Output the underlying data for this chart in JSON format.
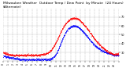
{
  "title": "Milwaukee Weather  Outdoor Temp / Dew Point  by Minute  (24 Hours) (Alternate)",
  "title_fontsize": 3.2,
  "bg_color": "#ffffff",
  "plot_bg_color": "#ffffff",
  "grid_color": "#aaaaaa",
  "text_color": "#000000",
  "temp_color": "#ff0000",
  "dew_color": "#0000ff",
  "ylim": [
    20,
    80
  ],
  "xlim": [
    0,
    1440
  ],
  "ytick_vals": [
    30,
    40,
    50,
    60,
    70
  ],
  "xtick_hours": [
    0,
    1,
    2,
    3,
    4,
    5,
    6,
    7,
    8,
    9,
    10,
    11,
    12,
    13,
    14,
    15,
    16,
    17,
    18,
    19,
    20,
    21,
    22,
    23,
    24
  ],
  "temp_data_pts": [
    [
      0,
      30
    ],
    [
      30,
      29
    ],
    [
      60,
      28
    ],
    [
      90,
      27
    ],
    [
      120,
      27
    ],
    [
      150,
      27
    ],
    [
      180,
      27
    ],
    [
      210,
      27
    ],
    [
      240,
      27
    ],
    [
      270,
      27
    ],
    [
      300,
      27
    ],
    [
      330,
      27
    ],
    [
      360,
      27
    ],
    [
      390,
      27
    ],
    [
      420,
      27
    ],
    [
      450,
      27
    ],
    [
      480,
      28
    ],
    [
      510,
      28
    ],
    [
      540,
      29
    ],
    [
      570,
      30
    ],
    [
      600,
      33
    ],
    [
      630,
      37
    ],
    [
      660,
      42
    ],
    [
      690,
      48
    ],
    [
      720,
      54
    ],
    [
      750,
      59
    ],
    [
      780,
      63
    ],
    [
      810,
      66
    ],
    [
      840,
      68
    ],
    [
      870,
      69
    ],
    [
      900,
      69
    ],
    [
      930,
      68
    ],
    [
      960,
      66
    ],
    [
      990,
      63
    ],
    [
      1020,
      60
    ],
    [
      1050,
      57
    ],
    [
      1080,
      53
    ],
    [
      1110,
      49
    ],
    [
      1140,
      45
    ],
    [
      1170,
      42
    ],
    [
      1200,
      39
    ],
    [
      1230,
      36
    ],
    [
      1260,
      34
    ],
    [
      1290,
      32
    ],
    [
      1320,
      30
    ],
    [
      1350,
      29
    ],
    [
      1380,
      28
    ],
    [
      1410,
      28
    ],
    [
      1440,
      28
    ]
  ],
  "dew_data_pts": [
    [
      0,
      26
    ],
    [
      30,
      25
    ],
    [
      60,
      25
    ],
    [
      90,
      24
    ],
    [
      120,
      24
    ],
    [
      150,
      23
    ],
    [
      180,
      23
    ],
    [
      210,
      22
    ],
    [
      240,
      22
    ],
    [
      270,
      22
    ],
    [
      300,
      22
    ],
    [
      330,
      22
    ],
    [
      360,
      22
    ],
    [
      390,
      22
    ],
    [
      420,
      22
    ],
    [
      450,
      22
    ],
    [
      480,
      22
    ],
    [
      510,
      22
    ],
    [
      540,
      22
    ],
    [
      570,
      22
    ],
    [
      600,
      23
    ],
    [
      630,
      25
    ],
    [
      660,
      28
    ],
    [
      690,
      34
    ],
    [
      720,
      41
    ],
    [
      750,
      48
    ],
    [
      780,
      53
    ],
    [
      810,
      57
    ],
    [
      840,
      59
    ],
    [
      870,
      60
    ],
    [
      900,
      60
    ],
    [
      930,
      59
    ],
    [
      960,
      57
    ],
    [
      990,
      54
    ],
    [
      1020,
      51
    ],
    [
      1050,
      48
    ],
    [
      1080,
      44
    ],
    [
      1110,
      41
    ],
    [
      1140,
      38
    ],
    [
      1170,
      36
    ],
    [
      1200,
      34
    ],
    [
      1230,
      32
    ],
    [
      1260,
      31
    ],
    [
      1290,
      30
    ],
    [
      1320,
      29
    ],
    [
      1350,
      28
    ],
    [
      1380,
      27
    ],
    [
      1410,
      27
    ],
    [
      1440,
      27
    ]
  ]
}
